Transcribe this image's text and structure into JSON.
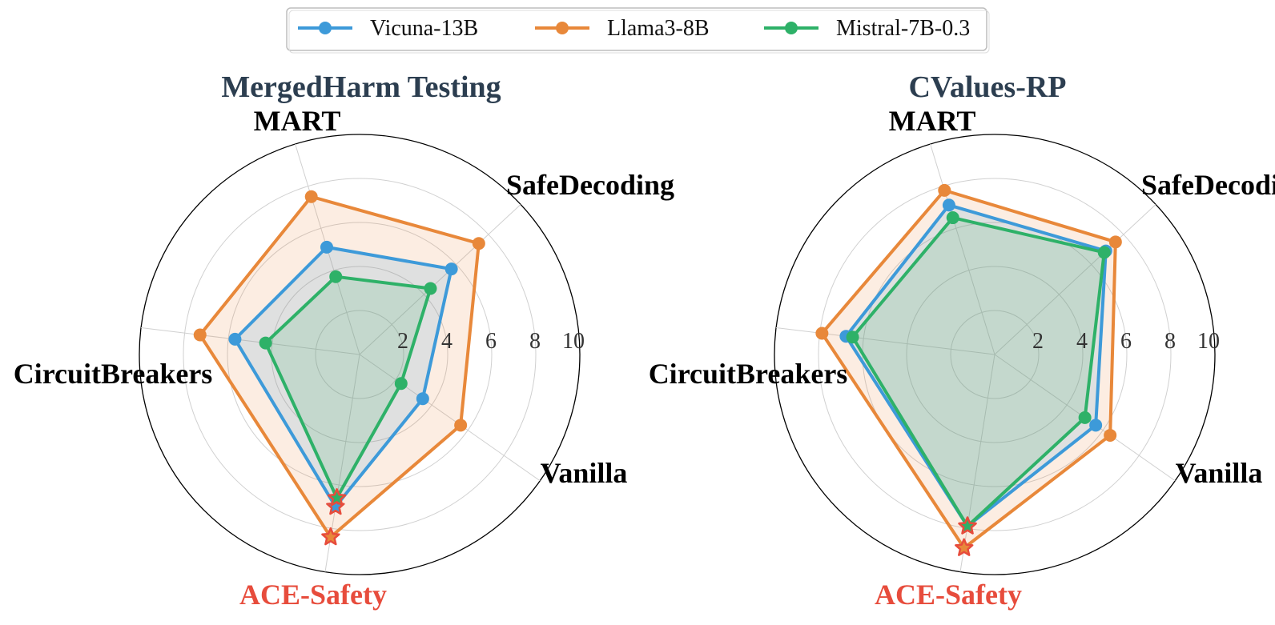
{
  "legend": {
    "items": [
      {
        "name": "Vicuna-13B",
        "color": "#3d9ad9"
      },
      {
        "name": "Llama3-8B",
        "color": "#e8883a"
      },
      {
        "name": "Mistral-7B-0.3",
        "color": "#2eb168"
      }
    ]
  },
  "chart_data": [
    {
      "type": "radar",
      "title": "MergedHarm Testing",
      "axes": [
        "MART",
        "SafeDecoding",
        "Vanilla",
        "ACE-Safety",
        "CircuitBreakers"
      ],
      "highlight_axis": "ACE-Safety",
      "highlight_color": "#e74c3c",
      "rlim": [
        0,
        10
      ],
      "ticks": [
        "2",
        "4",
        "6",
        "8",
        "10"
      ],
      "grid": true,
      "series": [
        {
          "name": "Vicuna-13B",
          "values": [
            5.1,
            5.7,
            3.5,
            7.0,
            5.7
          ],
          "color": "#3d9ad9"
        },
        {
          "name": "Llama3-8B",
          "values": [
            7.5,
            7.4,
            5.6,
            8.4,
            7.3
          ],
          "color": "#e8883a"
        },
        {
          "name": "Mistral-7B-0.3",
          "values": [
            3.7,
            4.4,
            2.3,
            6.6,
            4.3
          ],
          "color": "#2eb168"
        }
      ]
    },
    {
      "type": "radar",
      "title": "CValues-RP",
      "axes": [
        "MART",
        "SafeDecoding",
        "Vanilla",
        "ACE-Safety",
        "CircuitBreakers"
      ],
      "highlight_axis": "ACE-Safety",
      "highlight_color": "#e74c3c",
      "rlim": [
        0,
        10
      ],
      "ticks": [
        "2",
        "4",
        "6",
        "8",
        "10"
      ],
      "grid": true,
      "series": [
        {
          "name": "Vicuna-13B",
          "values": [
            7.1,
            6.9,
            5.6,
            7.9,
            6.8
          ],
          "color": "#3d9ad9"
        },
        {
          "name": "Llama3-8B",
          "values": [
            7.8,
            7.5,
            6.4,
            8.9,
            7.9
          ],
          "color": "#e8883a"
        },
        {
          "name": "Mistral-7B-0.3",
          "values": [
            6.5,
            6.8,
            5.0,
            7.9,
            6.5
          ],
          "color": "#2eb168"
        }
      ]
    }
  ]
}
